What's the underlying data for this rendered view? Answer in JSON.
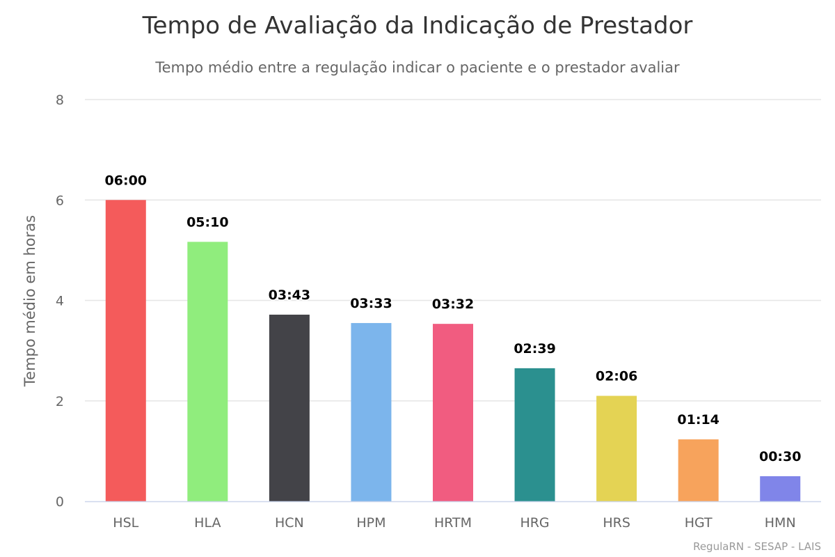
{
  "chart_data": {
    "type": "bar",
    "title": "Tempo de Avaliação da Indicação de Prestador",
    "subtitle": "Tempo médio entre a regulação indicar o paciente e o prestador avaliar",
    "xlabel": "",
    "ylabel": "Tempo médio em horas",
    "ylim": [
      0,
      8
    ],
    "yticks": [
      0,
      2,
      4,
      6,
      8
    ],
    "grid": true,
    "categories": [
      "HSL",
      "HLA",
      "HCN",
      "HPM",
      "HRTM",
      "HRG",
      "HRS",
      "HGT",
      "HMN"
    ],
    "values": [
      6.0,
      5.1667,
      3.7167,
      3.55,
      3.5333,
      2.65,
      2.1,
      1.2333,
      0.5
    ],
    "data_labels": [
      "06:00",
      "05:10",
      "03:43",
      "03:33",
      "03:32",
      "02:39",
      "02:06",
      "01:14",
      "00:30"
    ],
    "colors": [
      "#f45b5b",
      "#90ed7d",
      "#434348",
      "#7cb5ec",
      "#f15c80",
      "#2b908f",
      "#e4d354",
      "#f7a35c",
      "#8085e9"
    ],
    "credits": "RegulaRN - SESAP - LAIS"
  }
}
